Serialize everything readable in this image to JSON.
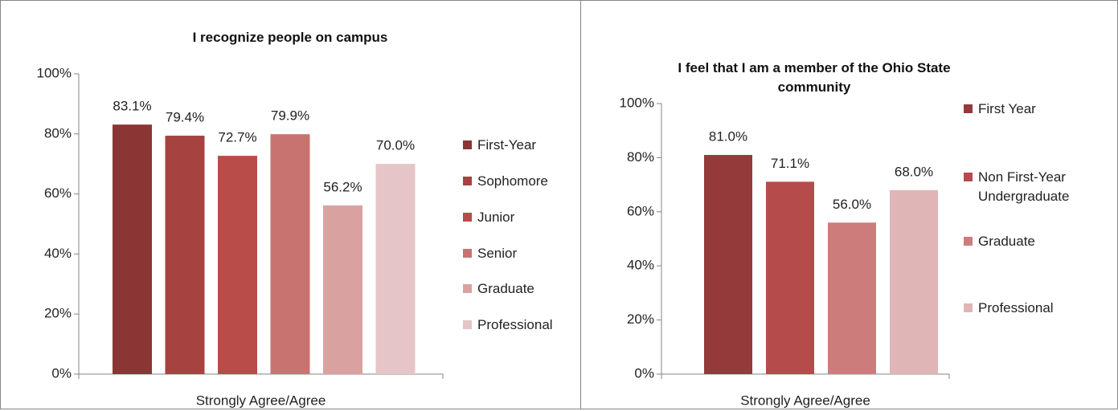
{
  "chart_data": [
    {
      "type": "bar",
      "title": "I recognize people on campus",
      "categories": [
        "Strongly Agree/Agree"
      ],
      "series": [
        {
          "name": "First-Year",
          "color": "#8c3535",
          "values": [
            83.1
          ],
          "value_labels": [
            "83.1%"
          ]
        },
        {
          "name": "Sophomore",
          "color": "#a64240",
          "values": [
            79.4
          ],
          "value_labels": [
            "79.4%"
          ]
        },
        {
          "name": "Junior",
          "color": "#b94b48",
          "values": [
            72.7
          ],
          "value_labels": [
            "72.7%"
          ]
        },
        {
          "name": "Senior",
          "color": "#c97370",
          "values": [
            79.9
          ],
          "value_labels": [
            "79.9%"
          ]
        },
        {
          "name": "Graduate",
          "color": "#d9a2a1",
          "values": [
            56.2
          ],
          "value_labels": [
            "56.2%"
          ]
        },
        {
          "name": "Professional",
          "color": "#e5c5c7",
          "values": [
            70.0
          ],
          "value_labels": [
            "70.0%"
          ]
        }
      ],
      "ylim": [
        0,
        100
      ],
      "yticks": [
        {
          "value": 0,
          "label": "0%"
        },
        {
          "value": 20,
          "label": "20%"
        },
        {
          "value": 40,
          "label": "40%"
        },
        {
          "value": 60,
          "label": "60%"
        },
        {
          "value": 80,
          "label": "80%"
        },
        {
          "value": 100,
          "label": "100%"
        }
      ],
      "grid": false,
      "legend": "right"
    },
    {
      "type": "bar",
      "title": "I feel that I am a member of the Ohio State community",
      "categories": [
        "Strongly Agree/Agree"
      ],
      "series": [
        {
          "name": "First Year",
          "color": "#943a3a",
          "values": [
            81.0
          ],
          "value_labels": [
            "81.0%"
          ]
        },
        {
          "name": "Non First-Year Undergraduate",
          "color": "#b54b4a",
          "values": [
            71.1
          ],
          "value_labels": [
            "71.1%"
          ]
        },
        {
          "name": "Graduate",
          "color": "#cd7c7c",
          "values": [
            56.0
          ],
          "value_labels": [
            "56.0%"
          ]
        },
        {
          "name": "Professional",
          "color": "#e0b5b6",
          "values": [
            68.0
          ],
          "value_labels": [
            "68.0%"
          ]
        }
      ],
      "ylim": [
        0,
        100
      ],
      "yticks": [
        {
          "value": 0,
          "label": "0%"
        },
        {
          "value": 20,
          "label": "20%"
        },
        {
          "value": 40,
          "label": "40%"
        },
        {
          "value": 60,
          "label": "60%"
        },
        {
          "value": 80,
          "label": "80%"
        },
        {
          "value": 100,
          "label": "100%"
        }
      ],
      "grid": false,
      "legend": "right"
    }
  ]
}
